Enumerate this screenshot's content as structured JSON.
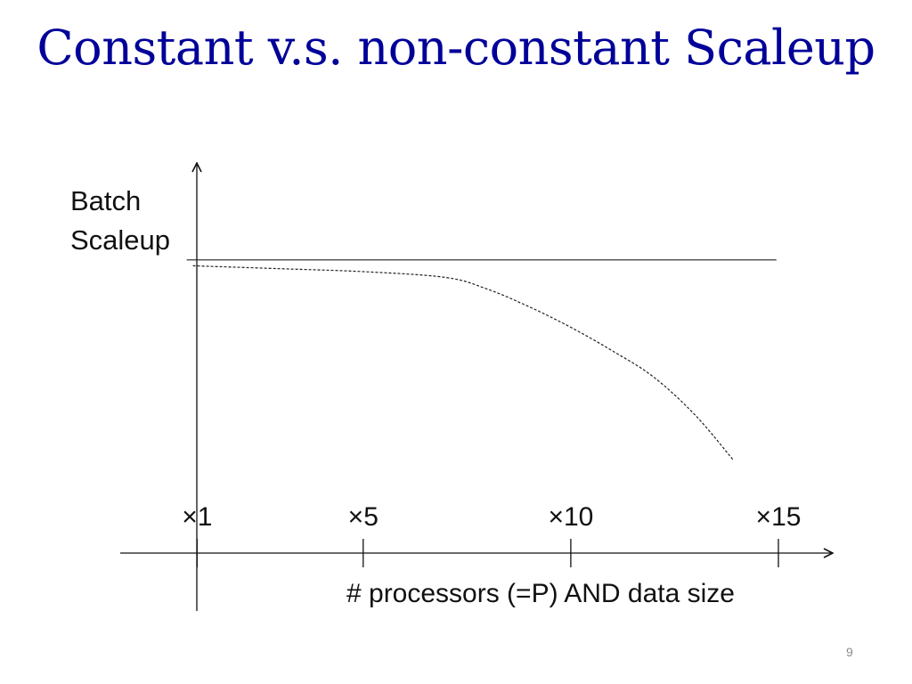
{
  "slide": {
    "title": "Constant v.s. non-constant Scaleup",
    "page_number": "9"
  },
  "colors": {
    "title": "#000099",
    "axis": "#111111",
    "series": "#222222",
    "page_number": "#8c8c8c"
  },
  "chart_data": {
    "type": "line",
    "title": "",
    "xlabel": "# processors (=P) AND data size",
    "ylabel_lines": [
      "Batch",
      "Scaleup"
    ],
    "x_ticks": [
      {
        "value": 1,
        "label": "×1"
      },
      {
        "value": 5,
        "label": "×5"
      },
      {
        "value": 10,
        "label": "×10"
      },
      {
        "value": 15,
        "label": "×15"
      }
    ],
    "xlim": [
      0.5,
      15
    ],
    "ylim": [
      0,
      1.2
    ],
    "y_ticks": [],
    "grid": false,
    "legend": "none",
    "series": [
      {
        "style": "solid",
        "x": [
          0.75,
          14.95
        ],
        "y": [
          1.0,
          1.0
        ]
      },
      {
        "style": "dashed",
        "x": [
          0.9,
          3,
          5,
          7,
          8,
          9,
          10,
          11,
          12,
          13,
          13.9
        ],
        "y": [
          0.98,
          0.97,
          0.96,
          0.94,
          0.9,
          0.84,
          0.77,
          0.69,
          0.6,
          0.47,
          0.32
        ]
      }
    ]
  }
}
